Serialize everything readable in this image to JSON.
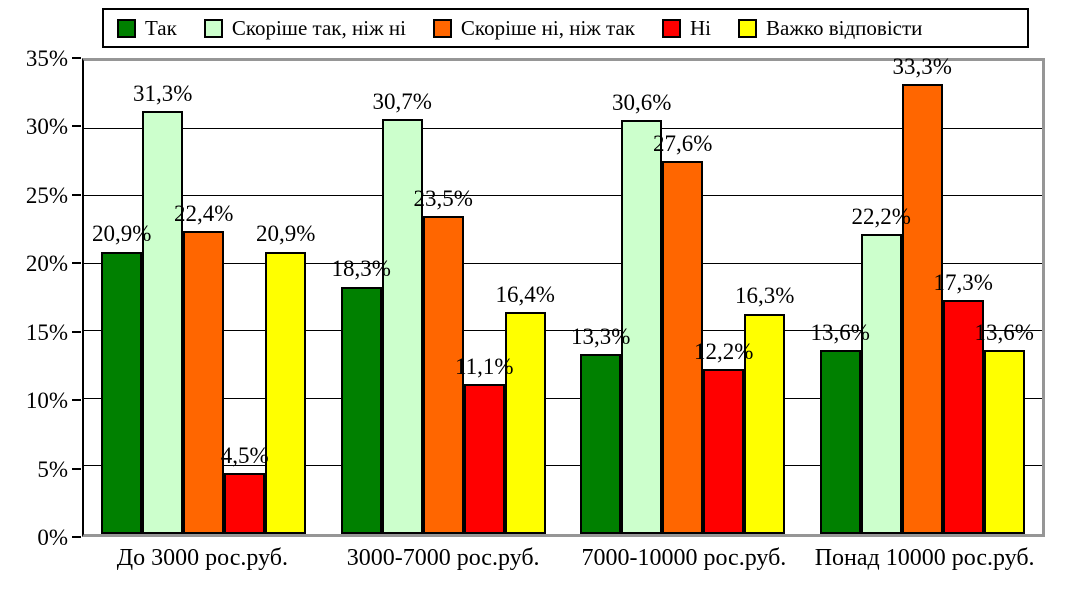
{
  "chart_data": {
    "type": "bar",
    "title": "",
    "xlabel": "",
    "ylabel": "",
    "ylim": [
      0,
      35
    ],
    "grid": true,
    "legend_position": "top",
    "decimal_style": "comma",
    "y_ticks": [
      {
        "value": 0,
        "label": "0%"
      },
      {
        "value": 5,
        "label": "5%"
      },
      {
        "value": 10,
        "label": "10%"
      },
      {
        "value": 15,
        "label": "15%"
      },
      {
        "value": 20,
        "label": "20%"
      },
      {
        "value": 25,
        "label": "25%"
      },
      {
        "value": 30,
        "label": "30%"
      },
      {
        "value": 35,
        "label": "35%"
      }
    ],
    "categories": [
      "До 3000 рос.руб.",
      "3000-7000 рос.руб.",
      "7000-10000 рос.руб.",
      "Понад 10000 рос.руб."
    ],
    "series": [
      {
        "name": "Так",
        "color": "#008000",
        "values": [
          20.9,
          18.3,
          13.3,
          13.6
        ],
        "labels": [
          "20,9%",
          "18,3%",
          "13,3%",
          "13,6%"
        ]
      },
      {
        "name": "Скоріше так, ніж ні",
        "color": "#CCFFCC",
        "values": [
          31.3,
          30.7,
          30.6,
          22.2
        ],
        "labels": [
          "31,3%",
          "30,7%",
          "30,6%",
          "22,2%"
        ]
      },
      {
        "name": "Скоріше ні, ніж так",
        "color": "#FF6600",
        "values": [
          22.4,
          23.5,
          27.6,
          33.3
        ],
        "labels": [
          "22,4%",
          "23,5%",
          "27,6%",
          "33,3%"
        ]
      },
      {
        "name": "Ні",
        "color": "#FF0000",
        "values": [
          4.5,
          11.1,
          12.2,
          17.3
        ],
        "labels": [
          "4,5%",
          "11,1%",
          "12,2%",
          "17,3%"
        ]
      },
      {
        "name": "Важко відповісти",
        "color": "#FFFF00",
        "values": [
          20.9,
          16.4,
          16.3,
          13.6
        ],
        "labels": [
          "20,9%",
          "16,4%",
          "16,3%",
          "13,6%"
        ]
      }
    ],
    "colors": {
      "plot_border": "#969696",
      "axis": "#000000",
      "gridline": "#000000",
      "background": "#FFFFFF",
      "label_text": "#000000"
    }
  }
}
